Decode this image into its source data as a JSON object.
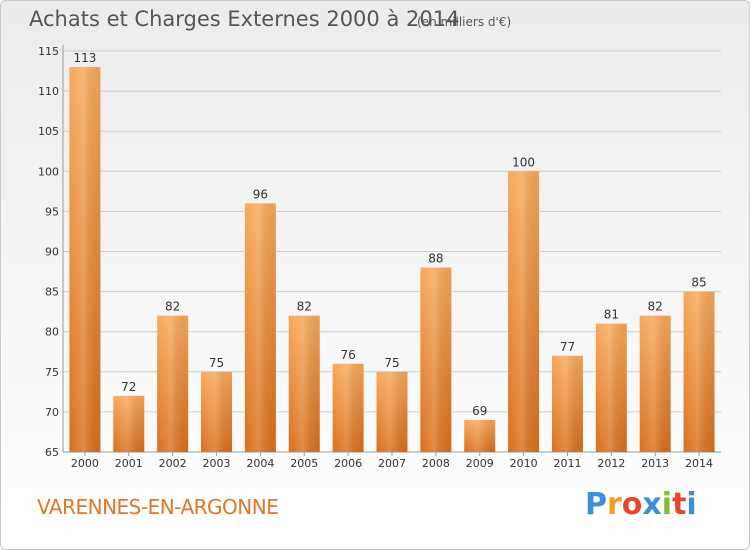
{
  "header": {
    "title": "Achats et Charges Externes 2000 à 2014",
    "subtitle": "(en milliers d'€)"
  },
  "footer": {
    "place": "VARENNES-EN-ARGONNE",
    "logo_letters": [
      "P",
      "r",
      "o",
      "x",
      "i",
      "t",
      "i"
    ],
    "logo_colors": [
      "#3a8fd6",
      "#f0a020",
      "#e8452c",
      "#3a8fd6",
      "#7bbf2a",
      "#e8452c",
      "#3a8fd6"
    ]
  },
  "colors": {
    "bar_top": "#f7a95a",
    "bar_bottom": "#d96f1c",
    "grid": "#cccccc",
    "axis_text": "#333333"
  },
  "chart_data": {
    "type": "bar",
    "categories": [
      "2000",
      "2001",
      "2002",
      "2003",
      "2004",
      "2005",
      "2006",
      "2007",
      "2008",
      "2009",
      "2010",
      "2011",
      "2012",
      "2013",
      "2014"
    ],
    "values": [
      113,
      72,
      82,
      75,
      96,
      82,
      76,
      75,
      88,
      69,
      100,
      77,
      81,
      82,
      85
    ],
    "data_labels": [
      "113",
      "72",
      "82",
      "75",
      "96",
      "82",
      "76",
      "75",
      "88",
      "69",
      "100",
      "77",
      "81",
      "82",
      "85"
    ],
    "y_ticks": [
      "65",
      "70",
      "75",
      "80",
      "85",
      "90",
      "95",
      "100",
      "105",
      "110",
      "115"
    ],
    "title": "Achats et Charges Externes 2000 à 2014",
    "xlabel": "",
    "ylabel": "",
    "ylim": [
      65,
      115
    ],
    "grid": true
  }
}
